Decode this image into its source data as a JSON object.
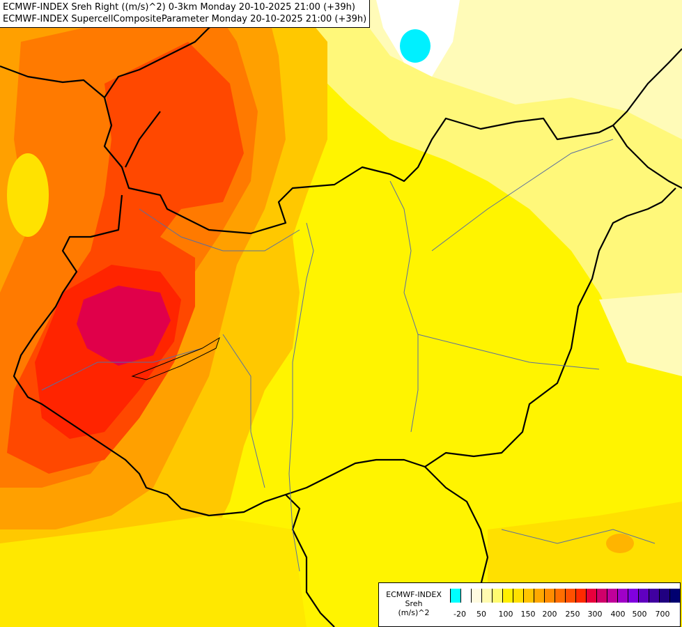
{
  "header": {
    "line1": "ECMWF-INDEX Sreh Right ((m/s)^2) 0-3km Monday 20-10-2025 21:00 (+39h)",
    "line2": "ECMWF-INDEX SupercellCompositeParameter Monday 20-10-2025 21:00 (+39h)"
  },
  "legend": {
    "title_line1": "ECMWF-INDEX",
    "title_line2": "Sreh",
    "title_line3": "(m/s)^2",
    "colors": [
      "#00ffff",
      "#ffffff",
      "#fffbe0",
      "#fffbb0",
      "#fffb70",
      "#fff000",
      "#ffe000",
      "#ffc400",
      "#ffa800",
      "#ff8c00",
      "#ff6e00",
      "#ff5000",
      "#ff2a00",
      "#e8003c",
      "#d0006a",
      "#c0009a",
      "#a000c8",
      "#8000e0",
      "#6000c0",
      "#4000a0",
      "#200080",
      "#000070"
    ],
    "labels": [
      "-20",
      "50",
      "100",
      "150",
      "200",
      "250",
      "300",
      "400",
      "500",
      "700"
    ]
  }
}
